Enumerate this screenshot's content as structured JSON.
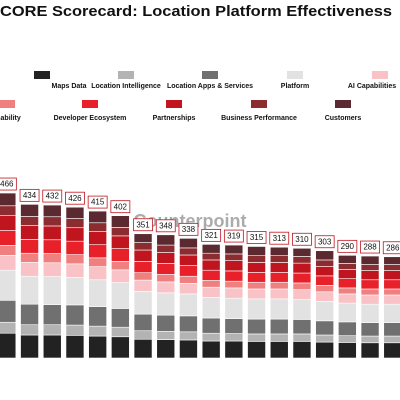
{
  "chart_data": {
    "type": "stacked_bar",
    "title": "CORE Scorecard: Location Platform Effectiveness",
    "watermark": "Counterpoint",
    "categories": [
      null,
      null,
      null,
      null,
      null,
      null,
      null,
      null,
      null,
      null,
      null,
      null,
      null,
      null,
      null,
      null,
      null,
      null
    ],
    "totals": [
      466,
      434,
      432,
      426,
      415,
      402,
      351,
      348,
      338,
      321,
      319,
      315,
      313,
      310,
      303,
      290,
      288,
      286
    ],
    "ylim": [
      0,
      500
    ],
    "series": [
      {
        "name": "Maps Data",
        "color": "#222222",
        "values": [
          70,
          65,
          65,
          64,
          62,
          60,
          53,
          52,
          51,
          48,
          48,
          47,
          47,
          47,
          45,
          44,
          43,
          43
        ]
      },
      {
        "name": "Location Intelligence",
        "color": "#b3b3b3",
        "values": [
          31,
          29,
          29,
          29,
          28,
          27,
          24,
          23,
          23,
          22,
          21,
          21,
          21,
          21,
          20,
          19,
          19,
          19
        ]
      },
      {
        "name": "Location Apps & Services",
        "color": "#707070",
        "values": [
          62,
          58,
          57,
          57,
          55,
          53,
          47,
          46,
          45,
          43,
          42,
          42,
          42,
          41,
          40,
          39,
          38,
          38
        ]
      },
      {
        "name": "Platform",
        "color": "#e2e2e2",
        "values": [
          85,
          79,
          79,
          78,
          76,
          73,
          64,
          63,
          62,
          58,
          58,
          57,
          57,
          56,
          55,
          53,
          52,
          52
        ]
      },
      {
        "name": "AI Capabilities",
        "color": "#f8c2c6",
        "values": [
          42,
          39,
          39,
          38,
          37,
          36,
          32,
          31,
          30,
          29,
          29,
          28,
          28,
          28,
          27,
          26,
          26,
          26
        ]
      },
      {
        "name": "Sustainability",
        "color": "#f08080",
        "values": [
          28,
          26,
          26,
          26,
          25,
          24,
          21,
          21,
          20,
          19,
          19,
          19,
          19,
          19,
          18,
          17,
          17,
          17
        ]
      },
      {
        "name": "Developer Ecosystem",
        "color": "#e8202a",
        "values": [
          42,
          39,
          39,
          38,
          37,
          36,
          32,
          31,
          30,
          29,
          29,
          28,
          28,
          28,
          27,
          26,
          26,
          26
        ]
      },
      {
        "name": "Partnerships",
        "color": "#c0141e",
        "values": [
          42,
          39,
          39,
          38,
          37,
          36,
          32,
          31,
          30,
          29,
          29,
          28,
          28,
          28,
          27,
          26,
          26,
          26
        ]
      },
      {
        "name": "Business Performance",
        "color": "#8b2c30",
        "values": [
          28,
          26,
          26,
          26,
          25,
          24,
          21,
          21,
          20,
          19,
          19,
          19,
          19,
          19,
          18,
          17,
          17,
          17
        ]
      },
      {
        "name": "Customers",
        "color": "#5a2a30",
        "values": [
          36,
          34,
          33,
          32,
          33,
          33,
          25,
          29,
          27,
          25,
          25,
          26,
          24,
          23,
          26,
          23,
          24,
          22
        ]
      }
    ]
  }
}
